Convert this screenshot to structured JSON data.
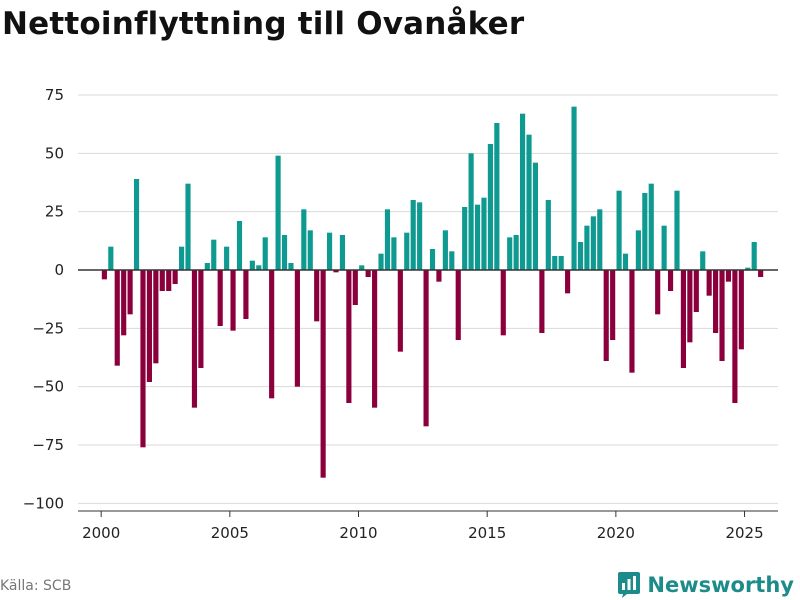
{
  "chart_data": {
    "type": "bar",
    "title": "Nettoinflyttning till Ovanåker",
    "xlabel": "",
    "ylabel": "",
    "ylim": [
      -100,
      80
    ],
    "xlim": [
      1999.1,
      2026.3
    ],
    "y_ticks": [
      75,
      50,
      25,
      0,
      -25,
      -50,
      -75,
      -100
    ],
    "y_tick_labels": [
      "75",
      "50",
      "25",
      "0",
      "−25",
      "−50",
      "−75",
      "−100"
    ],
    "x_ticks": [
      2000,
      2005,
      2010,
      2015,
      2020,
      2025
    ],
    "x_tick_labels": [
      "2000",
      "2005",
      "2010",
      "2015",
      "2020",
      "2025"
    ],
    "positive_color": "#0f9a91",
    "negative_color": "#8b003c",
    "bar_width_years": 0.2,
    "x": [
      2000.125,
      2000.375,
      2000.625,
      2000.875,
      2001.125,
      2001.375,
      2001.625,
      2001.875,
      2002.125,
      2002.375,
      2002.625,
      2002.875,
      2003.125,
      2003.375,
      2003.625,
      2003.875,
      2004.125,
      2004.375,
      2004.625,
      2004.875,
      2005.125,
      2005.375,
      2005.625,
      2005.875,
      2006.125,
      2006.375,
      2006.625,
      2006.875,
      2007.125,
      2007.375,
      2007.625,
      2007.875,
      2008.125,
      2008.375,
      2008.625,
      2008.875,
      2009.125,
      2009.375,
      2009.625,
      2009.875,
      2010.125,
      2010.375,
      2010.625,
      2010.875,
      2011.125,
      2011.375,
      2011.625,
      2011.875,
      2012.125,
      2012.375,
      2012.625,
      2012.875,
      2013.125,
      2013.375,
      2013.625,
      2013.875,
      2014.125,
      2014.375,
      2014.625,
      2014.875,
      2015.125,
      2015.375,
      2015.625,
      2015.875,
      2016.125,
      2016.375,
      2016.625,
      2016.875,
      2017.125,
      2017.375,
      2017.625,
      2017.875,
      2018.125,
      2018.375,
      2018.625,
      2018.875,
      2019.125,
      2019.375,
      2019.625,
      2019.875,
      2020.125,
      2020.375,
      2020.625,
      2020.875,
      2021.125,
      2021.375,
      2021.625,
      2021.875,
      2022.125,
      2022.375,
      2022.625,
      2022.875,
      2023.125,
      2023.375,
      2023.625,
      2023.875,
      2024.125,
      2024.375,
      2024.625,
      2024.875,
      2025.125,
      2025.375,
      2025.625
    ],
    "values": [
      -4,
      10,
      -41,
      -28,
      -19,
      39,
      -76,
      -48,
      -40,
      -9,
      -9,
      -6,
      10,
      37,
      -59,
      -42,
      3,
      13,
      -24,
      10,
      -26,
      21,
      -21,
      4,
      2,
      14,
      -55,
      49,
      15,
      3,
      -50,
      26,
      17,
      -22,
      -89,
      16,
      -1,
      15,
      -57,
      -15,
      2,
      -3,
      -59,
      7,
      26,
      14,
      -35,
      16,
      30,
      29,
      -67,
      9,
      -5,
      17,
      8,
      -30,
      27,
      50,
      28,
      31,
      54,
      63,
      -28,
      14,
      15,
      67,
      58,
      46,
      -27,
      30,
      6,
      6,
      -10,
      70,
      12,
      19,
      23,
      26,
      -39,
      -30,
      34,
      7,
      -44,
      17,
      33,
      37,
      -19,
      19,
      -9,
      34,
      -42,
      -31,
      -18,
      8,
      -11,
      -27,
      -39,
      -5,
      -57,
      -34,
      1,
      12,
      -3
    ]
  },
  "source_label": "Källa: SCB",
  "brand": {
    "name": "Newsworthy",
    "color": "#1c8c8a"
  }
}
